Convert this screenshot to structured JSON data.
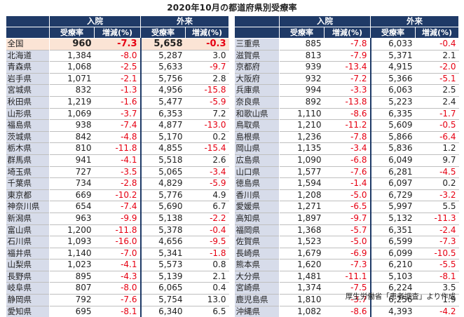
{
  "title": "2020年10月の都道府県別受療率",
  "source": "厚生労働省「患者調査」より作成",
  "headers": {
    "inpatient": "入院",
    "outpatient": "外来",
    "rate": "受療率",
    "change": "増減(%)"
  },
  "left_rows": [
    {
      "pref": "全国",
      "in_rate": "960",
      "in_chg": "-7.3",
      "out_rate": "5,658",
      "out_chg": "-0.3"
    },
    {
      "pref": "北海道",
      "in_rate": "1,384",
      "in_chg": "-8.0",
      "out_rate": "5,287",
      "out_chg": "3.0"
    },
    {
      "pref": "青森県",
      "in_rate": "1,068",
      "in_chg": "-2.5",
      "out_rate": "5,633",
      "out_chg": "-9.7"
    },
    {
      "pref": "岩手県",
      "in_rate": "1,071",
      "in_chg": "-2.1",
      "out_rate": "5,756",
      "out_chg": "2.8"
    },
    {
      "pref": "宮城県",
      "in_rate": "832",
      "in_chg": "-1.3",
      "out_rate": "4,956",
      "out_chg": "-15.8"
    },
    {
      "pref": "秋田県",
      "in_rate": "1,219",
      "in_chg": "-1.6",
      "out_rate": "5,477",
      "out_chg": "-5.9"
    },
    {
      "pref": "山形県",
      "in_rate": "1,069",
      "in_chg": "-3.7",
      "out_rate": "6,353",
      "out_chg": "7.2"
    },
    {
      "pref": "福島県",
      "in_rate": "938",
      "in_chg": "-7.4",
      "out_rate": "4,877",
      "out_chg": "-13.0"
    },
    {
      "pref": "茨城県",
      "in_rate": "842",
      "in_chg": "-4.8",
      "out_rate": "5,170",
      "out_chg": "0.2"
    },
    {
      "pref": "栃木県",
      "in_rate": "810",
      "in_chg": "-11.8",
      "out_rate": "4,855",
      "out_chg": "-15.4"
    },
    {
      "pref": "群馬県",
      "in_rate": "941",
      "in_chg": "-4.1",
      "out_rate": "5,518",
      "out_chg": "2.6"
    },
    {
      "pref": "埼玉県",
      "in_rate": "727",
      "in_chg": "-3.5",
      "out_rate": "5,065",
      "out_chg": "-3.4"
    },
    {
      "pref": "千葉県",
      "in_rate": "734",
      "in_chg": "-2.8",
      "out_rate": "4,829",
      "out_chg": "-5.9"
    },
    {
      "pref": "東京都",
      "in_rate": "669",
      "in_chg": "-10.2",
      "out_rate": "5,776",
      "out_chg": "4.9"
    },
    {
      "pref": "神奈川県",
      "in_rate": "654",
      "in_chg": "-7.4",
      "out_rate": "5,690",
      "out_chg": "6.7"
    },
    {
      "pref": "新潟県",
      "in_rate": "963",
      "in_chg": "-9.9",
      "out_rate": "5,138",
      "out_chg": "-2.2"
    },
    {
      "pref": "富山県",
      "in_rate": "1,200",
      "in_chg": "-11.8",
      "out_rate": "5,378",
      "out_chg": "-0.4"
    },
    {
      "pref": "石川県",
      "in_rate": "1,093",
      "in_chg": "-16.0",
      "out_rate": "4,656",
      "out_chg": "-9.5"
    },
    {
      "pref": "福井県",
      "in_rate": "1,140",
      "in_chg": "-7.0",
      "out_rate": "5,341",
      "out_chg": "-1.8"
    },
    {
      "pref": "山梨県",
      "in_rate": "1,023",
      "in_chg": "-4.1",
      "out_rate": "5,573",
      "out_chg": "0.8"
    },
    {
      "pref": "長野県",
      "in_rate": "895",
      "in_chg": "-4.3",
      "out_rate": "5,139",
      "out_chg": "2.1"
    },
    {
      "pref": "岐阜県",
      "in_rate": "807",
      "in_chg": "-8.0",
      "out_rate": "6,065",
      "out_chg": "0.4"
    },
    {
      "pref": "静岡県",
      "in_rate": "792",
      "in_chg": "-7.6",
      "out_rate": "5,754",
      "out_chg": "13.0"
    },
    {
      "pref": "愛知県",
      "in_rate": "695",
      "in_chg": "-8.1",
      "out_rate": "6,340",
      "out_chg": "6.5"
    }
  ],
  "right_rows": [
    {
      "pref": "三重県",
      "in_rate": "885",
      "in_chg": "-7.8",
      "out_rate": "6,033",
      "out_chg": "-0.4"
    },
    {
      "pref": "滋賀県",
      "in_rate": "813",
      "in_chg": "-7.9",
      "out_rate": "5,371",
      "out_chg": "2.1"
    },
    {
      "pref": "京都府",
      "in_rate": "939",
      "in_chg": "-13.4",
      "out_rate": "4,915",
      "out_chg": "-2.0"
    },
    {
      "pref": "大阪府",
      "in_rate": "932",
      "in_chg": "-7.2",
      "out_rate": "5,366",
      "out_chg": "-5.1"
    },
    {
      "pref": "兵庫県",
      "in_rate": "994",
      "in_chg": "-3.3",
      "out_rate": "6,063",
      "out_chg": "2.5"
    },
    {
      "pref": "奈良県",
      "in_rate": "892",
      "in_chg": "-13.8",
      "out_rate": "5,223",
      "out_chg": "2.4"
    },
    {
      "pref": "和歌山県",
      "in_rate": "1,110",
      "in_chg": "-8.6",
      "out_rate": "6,335",
      "out_chg": "-1.7"
    },
    {
      "pref": "鳥取県",
      "in_rate": "1,210",
      "in_chg": "-11.2",
      "out_rate": "5,609",
      "out_chg": "-0.5"
    },
    {
      "pref": "島根県",
      "in_rate": "1,236",
      "in_chg": "-7.8",
      "out_rate": "5,866",
      "out_chg": "-6.4"
    },
    {
      "pref": "岡山県",
      "in_rate": "1,135",
      "in_chg": "-3.4",
      "out_rate": "5,836",
      "out_chg": "1.2"
    },
    {
      "pref": "広島県",
      "in_rate": "1,090",
      "in_chg": "-6.8",
      "out_rate": "6,049",
      "out_chg": "9.7"
    },
    {
      "pref": "山口県",
      "in_rate": "1,577",
      "in_chg": "-7.6",
      "out_rate": "6,281",
      "out_chg": "-4.5"
    },
    {
      "pref": "徳島県",
      "in_rate": "1,594",
      "in_chg": "-1.4",
      "out_rate": "6,097",
      "out_chg": "0.2"
    },
    {
      "pref": "香川県",
      "in_rate": "1,208",
      "in_chg": "-5.0",
      "out_rate": "6,729",
      "out_chg": "-3.2"
    },
    {
      "pref": "愛媛県",
      "in_rate": "1,271",
      "in_chg": "-6.5",
      "out_rate": "5,997",
      "out_chg": "5.5"
    },
    {
      "pref": "高知県",
      "in_rate": "1,897",
      "in_chg": "-9.7",
      "out_rate": "5,132",
      "out_chg": "-11.3"
    },
    {
      "pref": "福岡県",
      "in_rate": "1,368",
      "in_chg": "-5.7",
      "out_rate": "6,351",
      "out_chg": "-2.4"
    },
    {
      "pref": "佐賀県",
      "in_rate": "1,523",
      "in_chg": "-5.0",
      "out_rate": "6,599",
      "out_chg": "-7.3"
    },
    {
      "pref": "長崎県",
      "in_rate": "1,679",
      "in_chg": "-6.9",
      "out_rate": "6,099",
      "out_chg": "-10.5"
    },
    {
      "pref": "熊本県",
      "in_rate": "1,620",
      "in_chg": "-7.3",
      "out_rate": "6,210",
      "out_chg": "-5.5"
    },
    {
      "pref": "大分県",
      "in_rate": "1,481",
      "in_chg": "-11.1",
      "out_rate": "5,103",
      "out_chg": "-8.1"
    },
    {
      "pref": "宮崎県",
      "in_rate": "1,374",
      "in_chg": "-7.5",
      "out_rate": "6,224",
      "out_chg": "3.5"
    },
    {
      "pref": "鹿児島県",
      "in_rate": "1,810",
      "in_chg": "-3.7",
      "out_rate": "6,256",
      "out_chg": "1.9"
    },
    {
      "pref": "沖縄県",
      "in_rate": "1,082",
      "in_chg": "-8.6",
      "out_rate": "4,393",
      "out_chg": "-4.2"
    }
  ],
  "colors": {
    "header_bg": "#1f3a67",
    "pref_bg": "#d7dcea",
    "highlight_bg": "#fbe4d5",
    "negative": "#e60012"
  }
}
